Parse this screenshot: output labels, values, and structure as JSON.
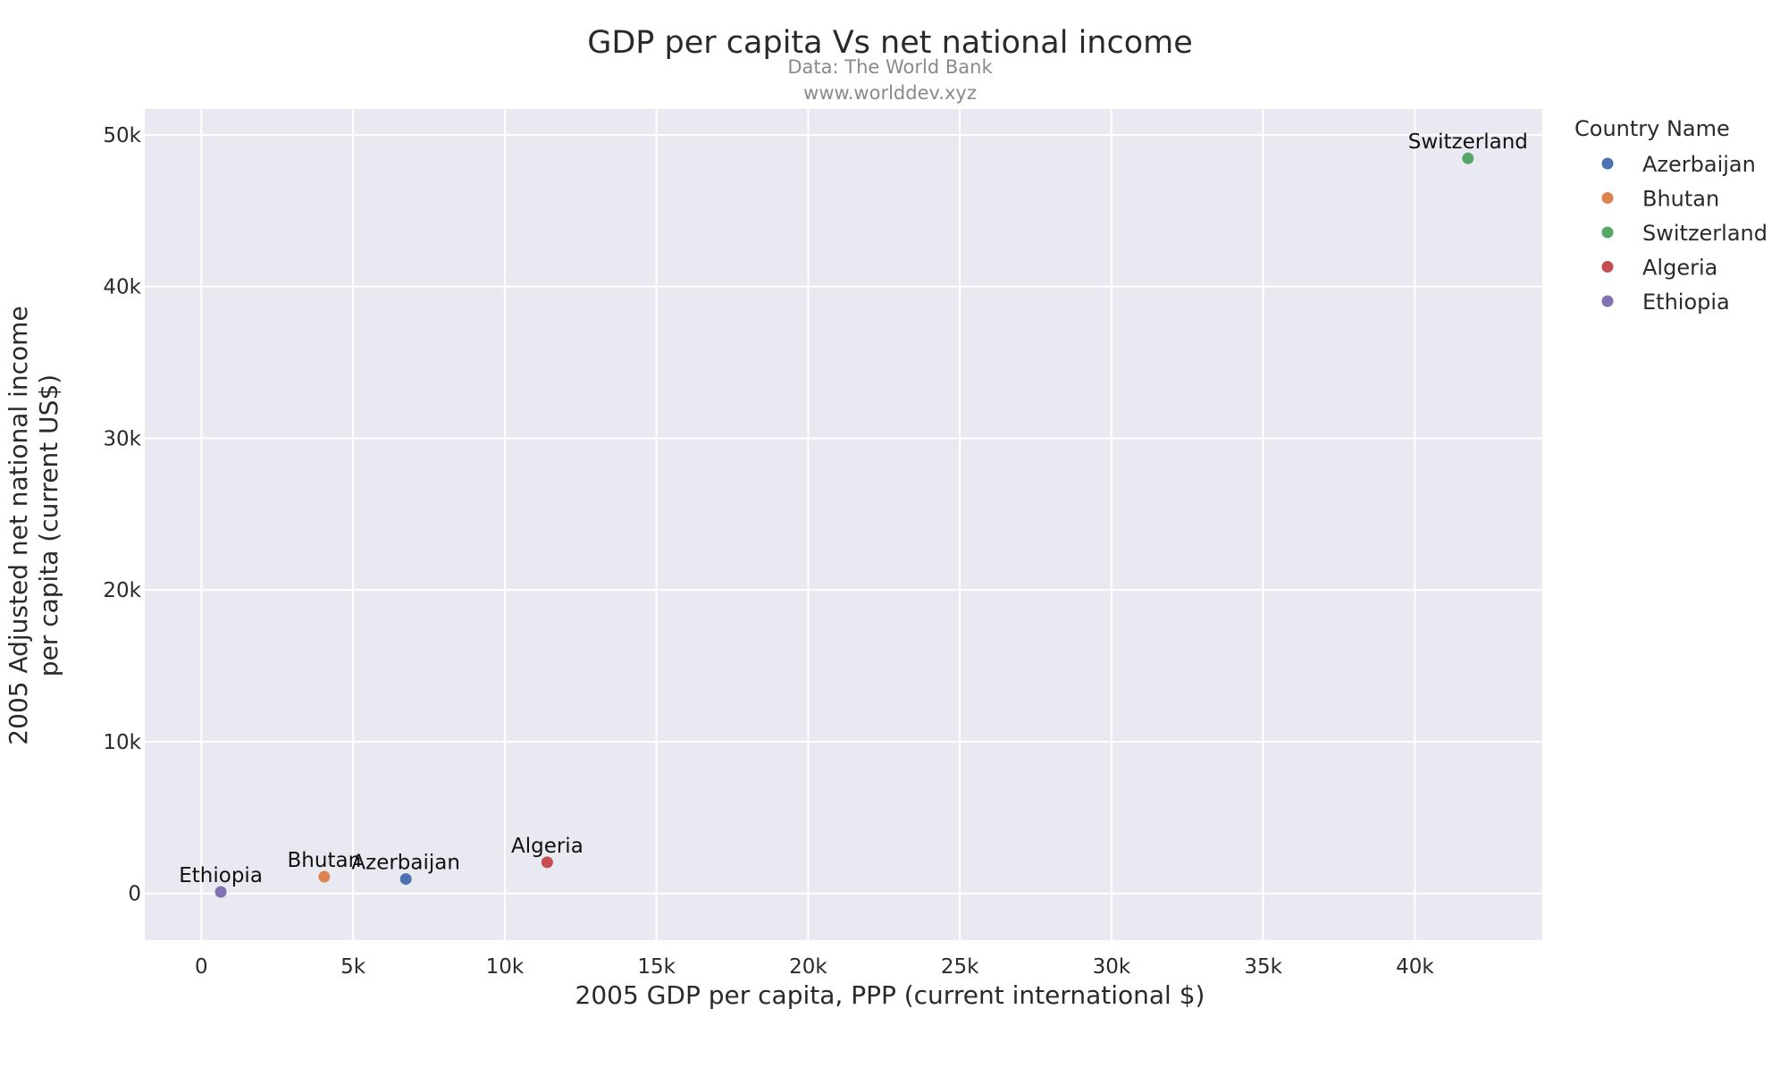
{
  "chart_data": {
    "type": "scatter",
    "title": "GDP per capita Vs net national income",
    "subtitle_lines": [
      "Data: The World Bank",
      "www.worlddev.xyz"
    ],
    "xlabel": "2005 GDP per capita, PPP (current international $)",
    "ylabel_lines": [
      "2005 Adjusted net national income",
      "per capita (current US$)"
    ],
    "xlim": [
      -1866,
      44200
    ],
    "ylim": [
      -3080,
      51700
    ],
    "x_ticks": [
      0,
      5000,
      10000,
      15000,
      20000,
      25000,
      30000,
      35000,
      40000
    ],
    "x_tick_labels": [
      "0",
      "5k",
      "10k",
      "15k",
      "20k",
      "25k",
      "30k",
      "35k",
      "40k"
    ],
    "y_ticks": [
      0,
      10000,
      20000,
      30000,
      40000,
      50000
    ],
    "y_tick_labels": [
      "0",
      "10k",
      "20k",
      "30k",
      "40k",
      "50k"
    ],
    "grid": true,
    "plot_background": "#e9e9f1",
    "grid_color": "#ffffff",
    "legend": {
      "title": "Country Name",
      "position": "top-right"
    },
    "series": [
      {
        "name": "Azerbaijan",
        "color": "#4c72b0",
        "points": [
          {
            "x": 6740,
            "y": 950,
            "label": "Azerbaijan"
          }
        ]
      },
      {
        "name": "Bhutan",
        "color": "#dd8452",
        "points": [
          {
            "x": 4050,
            "y": 1100,
            "label": "Bhutan"
          }
        ]
      },
      {
        "name": "Switzerland",
        "color": "#55a868",
        "points": [
          {
            "x": 41750,
            "y": 48450,
            "label": "Switzerland"
          }
        ]
      },
      {
        "name": "Algeria",
        "color": "#c44e52",
        "points": [
          {
            "x": 11400,
            "y": 2050,
            "label": "Algeria"
          }
        ]
      },
      {
        "name": "Ethiopia",
        "color": "#8172b3",
        "points": [
          {
            "x": 640,
            "y": 100,
            "label": "Ethiopia"
          }
        ]
      }
    ]
  }
}
